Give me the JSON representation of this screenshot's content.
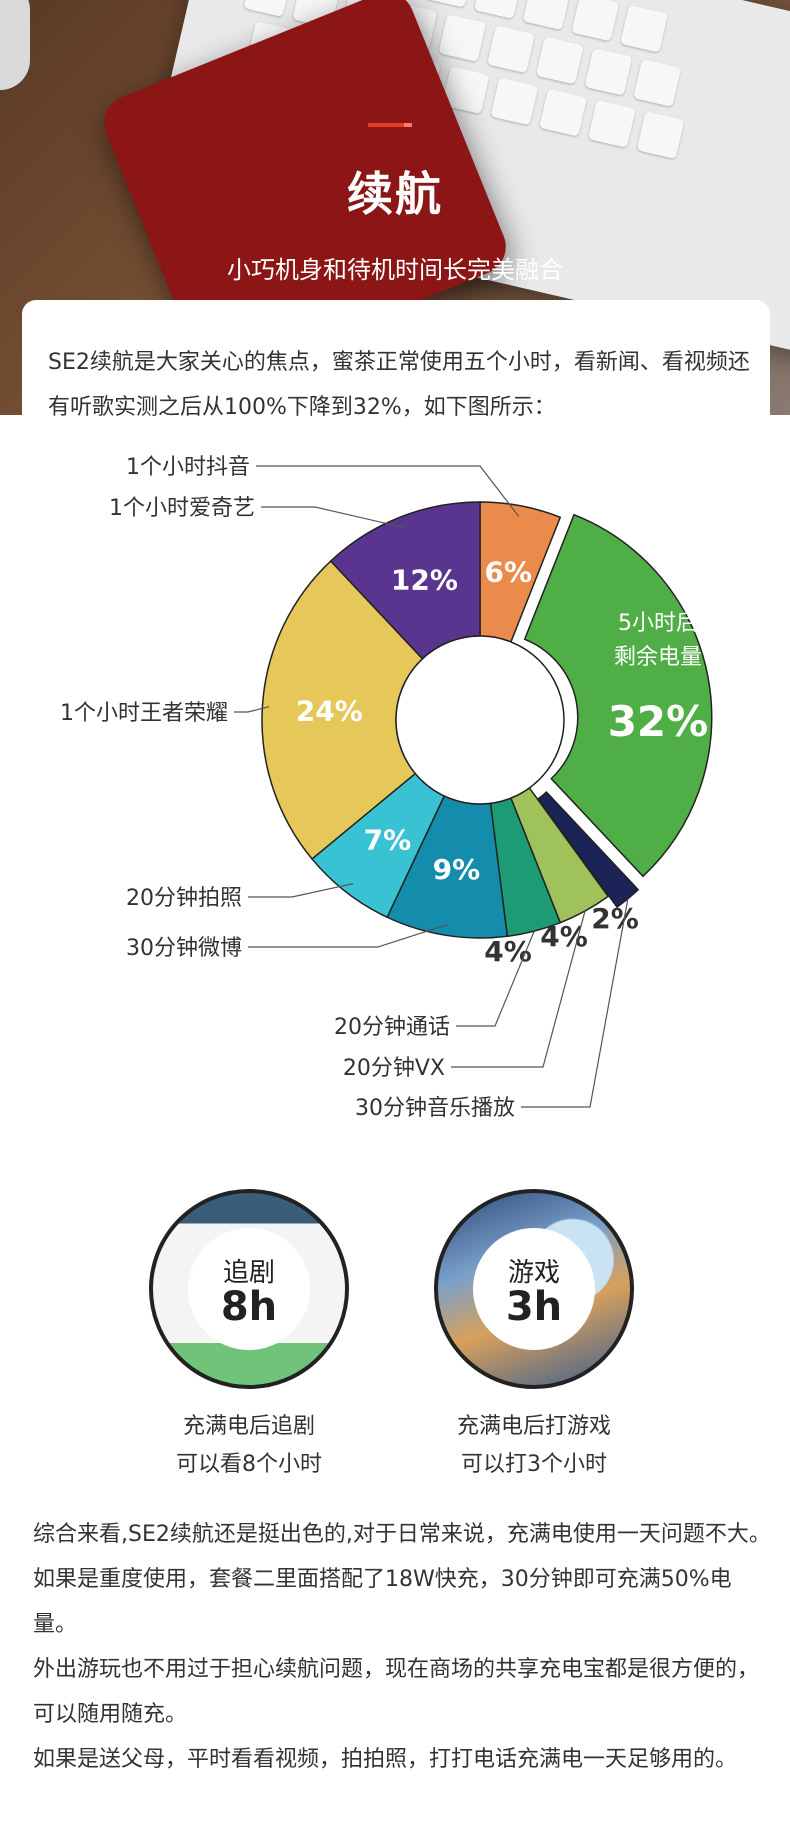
{
  "hero": {
    "title": "续航",
    "subtitle": "小巧机身和待机时间长完美融合"
  },
  "intro": "SE2续航是大家关心的焦点，蜜茶正常使用五个小时，看新闻、看视频还有听歌实测之后从100%下降到32%，如下图所示：",
  "chart_data": {
    "type": "pie",
    "title": "",
    "slices": [
      {
        "label": "1个小时抖音",
        "value": 6,
        "display": "6%",
        "color": "#ea8a4b"
      },
      {
        "label": "5小时后剩余电量",
        "value": 32,
        "display": "32%",
        "color": "#4fae45",
        "label_lines": [
          "5小时后",
          "剩余电量"
        ]
      },
      {
        "label": "30分钟音乐播放",
        "value": 2,
        "display": "2%",
        "color": "#1c2356"
      },
      {
        "label": "20分钟VX",
        "value": 4,
        "display": "4%",
        "color": "#9fc35a"
      },
      {
        "label": "20分钟通话",
        "value": 4,
        "display": "4%",
        "color": "#1d9b74"
      },
      {
        "label": "30分钟微博",
        "value": 9,
        "display": "9%",
        "color": "#148cab"
      },
      {
        "label": "20分钟拍照",
        "value": 7,
        "display": "7%",
        "color": "#39c2d3"
      },
      {
        "label": "1个小时王者荣耀",
        "value": 24,
        "display": "24%",
        "color": "#e6c75a"
      },
      {
        "label": "1个小时爱奇艺",
        "value": 12,
        "display": "12%",
        "color": "#5a358f"
      }
    ]
  },
  "badges": [
    {
      "small": "追剧",
      "big": "8h",
      "caption1": "充满电后追剧",
      "caption2": "可以看8个小时"
    },
    {
      "small": "游戏",
      "big": "3h",
      "caption1": "充满电后打游戏",
      "caption2": "可以打3个小时"
    }
  ],
  "summary": [
    "综合来看,SE2续航还是挺出色的,对于日常来说，充满电使用一天问题不大。如果是重度使用，套餐二里面搭配了18W快充，30分钟即可充满50%电量。",
    "外出游玩也不用过于担心续航问题，现在商场的共享充电宝都是很方便的，可以随用随充。",
    "如果是送父母，平时看看视频，拍拍照，打打电话充满电一天足够用的。"
  ]
}
